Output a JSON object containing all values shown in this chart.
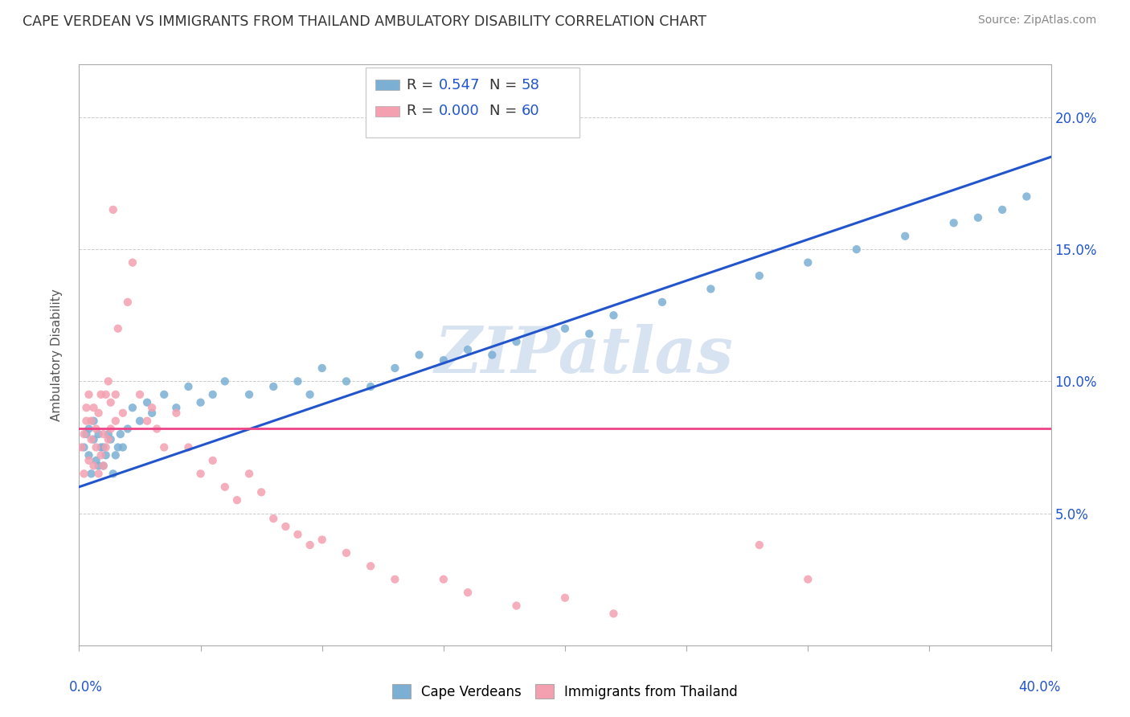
{
  "title": "CAPE VERDEAN VS IMMIGRANTS FROM THAILAND AMBULATORY DISABILITY CORRELATION CHART",
  "source": "Source: ZipAtlas.com",
  "ylabel": "Ambulatory Disability",
  "xmin": 0.0,
  "xmax": 0.4,
  "ymin": 0.0,
  "ymax": 0.22,
  "right_yticks": [
    0.05,
    0.1,
    0.15,
    0.2
  ],
  "right_yticklabels": [
    "5.0%",
    "10.0%",
    "15.0%",
    "20.0%"
  ],
  "color_blue": "#7BAFD4",
  "color_pink": "#F4A0B0",
  "color_blue_line": "#2255CC",
  "color_pink_line": "#EE4488",
  "watermark_color": "#C8D8EC",
  "blue_scatter_x": [
    0.002,
    0.003,
    0.004,
    0.004,
    0.005,
    0.006,
    0.006,
    0.007,
    0.008,
    0.008,
    0.009,
    0.01,
    0.01,
    0.011,
    0.012,
    0.013,
    0.014,
    0.015,
    0.016,
    0.017,
    0.018,
    0.02,
    0.022,
    0.025,
    0.028,
    0.03,
    0.035,
    0.04,
    0.045,
    0.05,
    0.055,
    0.06,
    0.07,
    0.08,
    0.09,
    0.095,
    0.1,
    0.11,
    0.12,
    0.13,
    0.14,
    0.15,
    0.16,
    0.17,
    0.18,
    0.2,
    0.21,
    0.22,
    0.24,
    0.26,
    0.28,
    0.3,
    0.32,
    0.34,
    0.36,
    0.37,
    0.38,
    0.39
  ],
  "blue_scatter_y": [
    0.075,
    0.08,
    0.072,
    0.082,
    0.065,
    0.078,
    0.085,
    0.07,
    0.068,
    0.08,
    0.075,
    0.068,
    0.075,
    0.072,
    0.08,
    0.078,
    0.065,
    0.072,
    0.075,
    0.08,
    0.075,
    0.082,
    0.09,
    0.085,
    0.092,
    0.088,
    0.095,
    0.09,
    0.098,
    0.092,
    0.095,
    0.1,
    0.095,
    0.098,
    0.1,
    0.095,
    0.105,
    0.1,
    0.098,
    0.105,
    0.11,
    0.108,
    0.112,
    0.11,
    0.115,
    0.12,
    0.118,
    0.125,
    0.13,
    0.135,
    0.14,
    0.145,
    0.15,
    0.155,
    0.16,
    0.162,
    0.165,
    0.17
  ],
  "pink_scatter_x": [
    0.001,
    0.002,
    0.002,
    0.003,
    0.003,
    0.004,
    0.004,
    0.005,
    0.005,
    0.006,
    0.006,
    0.007,
    0.007,
    0.008,
    0.008,
    0.009,
    0.009,
    0.01,
    0.01,
    0.011,
    0.011,
    0.012,
    0.012,
    0.013,
    0.013,
    0.014,
    0.015,
    0.015,
    0.016,
    0.018,
    0.02,
    0.022,
    0.025,
    0.028,
    0.03,
    0.032,
    0.035,
    0.04,
    0.045,
    0.05,
    0.055,
    0.06,
    0.065,
    0.07,
    0.075,
    0.08,
    0.085,
    0.09,
    0.095,
    0.1,
    0.11,
    0.12,
    0.13,
    0.15,
    0.16,
    0.18,
    0.2,
    0.22,
    0.28,
    0.3
  ],
  "pink_scatter_y": [
    0.075,
    0.08,
    0.065,
    0.085,
    0.09,
    0.07,
    0.095,
    0.078,
    0.085,
    0.068,
    0.09,
    0.075,
    0.082,
    0.065,
    0.088,
    0.072,
    0.095,
    0.068,
    0.08,
    0.075,
    0.095,
    0.078,
    0.1,
    0.082,
    0.092,
    0.165,
    0.085,
    0.095,
    0.12,
    0.088,
    0.13,
    0.145,
    0.095,
    0.085,
    0.09,
    0.082,
    0.075,
    0.088,
    0.075,
    0.065,
    0.07,
    0.06,
    0.055,
    0.065,
    0.058,
    0.048,
    0.045,
    0.042,
    0.038,
    0.04,
    0.035,
    0.03,
    0.025,
    0.025,
    0.02,
    0.015,
    0.018,
    0.012,
    0.038,
    0.025
  ]
}
